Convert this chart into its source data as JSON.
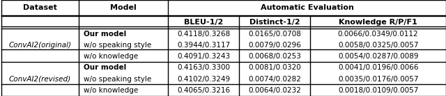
{
  "header_row1": [
    "Dataset",
    "Model",
    "Automatic Evaluation",
    "",
    ""
  ],
  "header_row2": [
    "",
    "",
    "BLEU-1/2",
    "Distinct-1/2",
    "Knowledge R/P/F1"
  ],
  "col_spans": {
    "Automatic Evaluation": 3
  },
  "rows": [
    [
      "ConvAI2(original)",
      "Our model",
      "0.4118/0.3268",
      "0.0165/0.0708",
      "0.0066/0.0349/0.0112"
    ],
    [
      "ConvAI2(original)",
      "w/o speaking style",
      "0.3944/0.3117",
      "0.0079/0.0296",
      "0.0058/0.0325/0.0057"
    ],
    [
      "ConvAI2(original)",
      "w/o knowledge",
      "0.4091/0.3243",
      "0.0068/0.0253",
      "0.0054/0.0287/0.0089"
    ],
    [
      "ConvAI2(revised)",
      "Our model",
      "0.4163/0.3300",
      "0.0081/0.0320",
      "0.0041/0.0196/0.0066"
    ],
    [
      "ConvAI2(revised)",
      "w/o speaking style",
      "0.4102/0.3249",
      "0.0074/0.0282",
      "0.0035/0.0176/0.0057"
    ],
    [
      "ConvAI2(revised)",
      "w/o knowledge",
      "0.4065/0.3216",
      "0.0064/0.0232",
      "0.0018/0.0109/0.0057"
    ]
  ],
  "bold_model_rows": [
    0,
    3
  ],
  "figsize": [
    6.4,
    1.38
  ],
  "dpi": 100,
  "font_size": 7.5,
  "header_font_size": 8.0,
  "bg_color": "#ffffff",
  "line_color": "#000000"
}
